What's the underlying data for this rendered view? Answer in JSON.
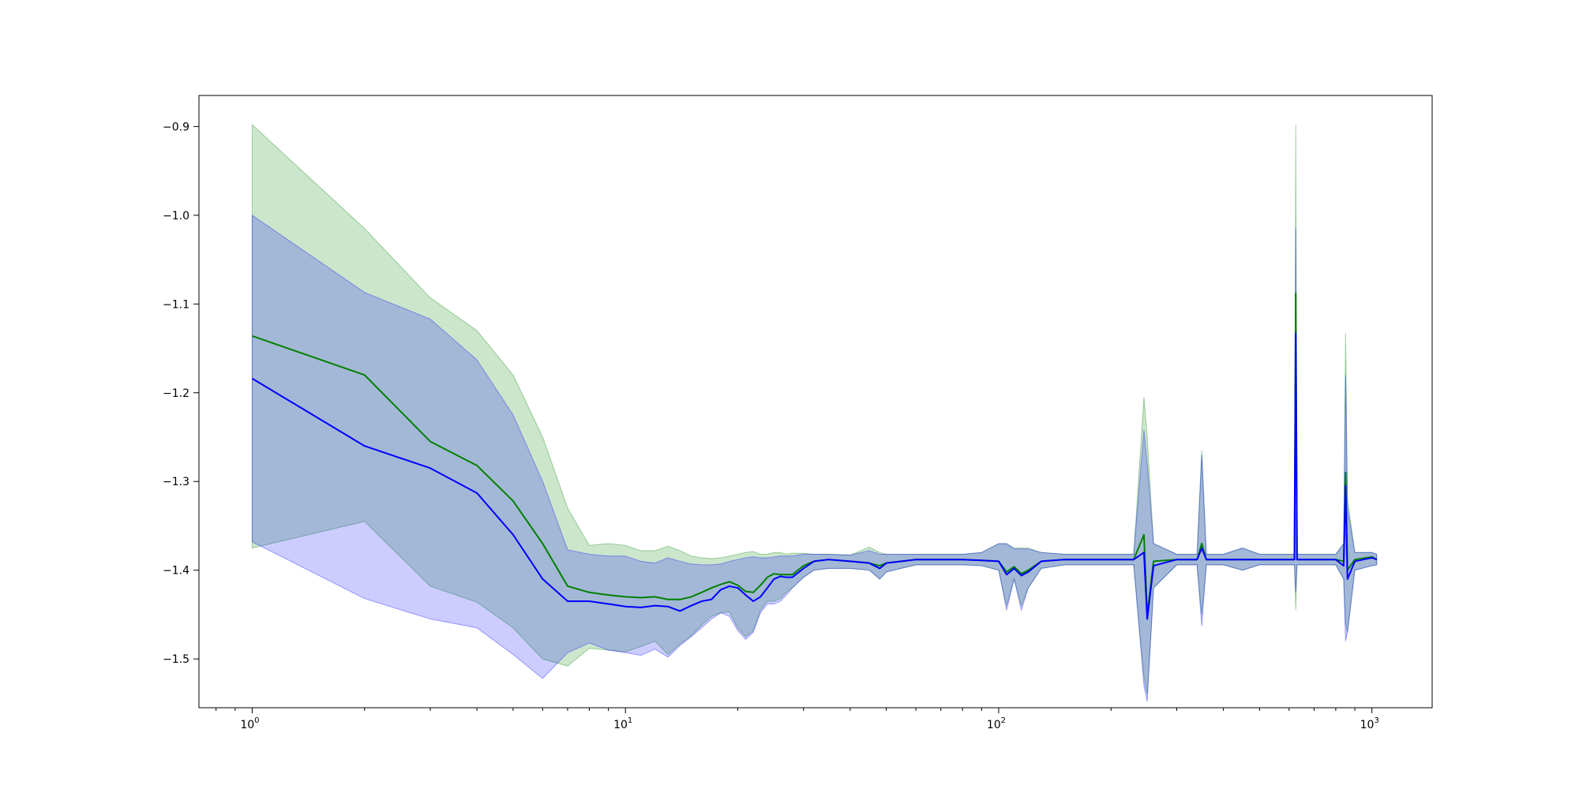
{
  "chart_data": {
    "type": "line",
    "xscale": "log",
    "xlim": [
      0.72,
      1450
    ],
    "ylim": [
      -1.555,
      -0.865
    ],
    "x_ticks": [
      {
        "value": 1,
        "base": "10",
        "exp": "0"
      },
      {
        "value": 10,
        "base": "10",
        "exp": "1"
      },
      {
        "value": 100,
        "base": "10",
        "exp": "2"
      },
      {
        "value": 1000,
        "base": "10",
        "exp": "3"
      }
    ],
    "y_ticks": [
      {
        "value": -0.9,
        "label": "−0.9"
      },
      {
        "value": -1.0,
        "label": "−1.0"
      },
      {
        "value": -1.1,
        "label": "−1.1"
      },
      {
        "value": -1.2,
        "label": "−1.2"
      },
      {
        "value": -1.3,
        "label": "−1.3"
      },
      {
        "value": -1.4,
        "label": "−1.4"
      },
      {
        "value": -1.5,
        "label": "−1.5"
      }
    ],
    "grid": false,
    "colors": {
      "green_line": "#008000",
      "green_band": "#008000",
      "blue_line": "#0000ff",
      "blue_band": "#0000ff",
      "band_opacity": 0.2
    },
    "series": [
      {
        "color": "green",
        "x": [
          1,
          2,
          3,
          4,
          5,
          6,
          7,
          8,
          9,
          10,
          11,
          12,
          13,
          14,
          15,
          16,
          17,
          18,
          19,
          20,
          21,
          22,
          23,
          24,
          25,
          26,
          27,
          28,
          30,
          32,
          35,
          40,
          45,
          48,
          50,
          60,
          70,
          80,
          90,
          100,
          105,
          110,
          115,
          120,
          130,
          150,
          180,
          200,
          230,
          245,
          250,
          260,
          300,
          340,
          350,
          360,
          400,
          450,
          500,
          550,
          600,
          620,
          625,
          630,
          700,
          800,
          840,
          850,
          860,
          900,
          1000,
          1030
        ],
        "mean": [
          -1.136,
          -1.18,
          -1.255,
          -1.282,
          -1.322,
          -1.37,
          -1.418,
          -1.425,
          -1.428,
          -1.43,
          -1.431,
          -1.43,
          -1.433,
          -1.433,
          -1.43,
          -1.425,
          -1.42,
          -1.416,
          -1.413,
          -1.417,
          -1.424,
          -1.425,
          -1.417,
          -1.408,
          -1.404,
          -1.405,
          -1.405,
          -1.405,
          -1.395,
          -1.39,
          -1.388,
          -1.39,
          -1.392,
          -1.395,
          -1.392,
          -1.388,
          -1.388,
          -1.388,
          -1.389,
          -1.39,
          -1.402,
          -1.396,
          -1.404,
          -1.4,
          -1.39,
          -1.388,
          -1.388,
          -1.388,
          -1.388,
          -1.36,
          -1.45,
          -1.39,
          -1.388,
          -1.388,
          -1.37,
          -1.388,
          -1.388,
          -1.388,
          -1.388,
          -1.388,
          -1.388,
          -1.388,
          -1.088,
          -1.388,
          -1.388,
          -1.388,
          -1.39,
          -1.29,
          -1.4,
          -1.388,
          -1.385,
          -1.388
        ],
        "lower": [
          -1.375,
          -1.345,
          -1.418,
          -1.436,
          -1.465,
          -1.5,
          -1.508,
          -1.488,
          -1.49,
          -1.492,
          -1.486,
          -1.48,
          -1.495,
          -1.483,
          -1.474,
          -1.462,
          -1.452,
          -1.448,
          -1.447,
          -1.465,
          -1.475,
          -1.468,
          -1.445,
          -1.435,
          -1.435,
          -1.432,
          -1.425,
          -1.42,
          -1.408,
          -1.4,
          -1.398,
          -1.398,
          -1.4,
          -1.41,
          -1.402,
          -1.394,
          -1.394,
          -1.394,
          -1.395,
          -1.4,
          -1.44,
          -1.41,
          -1.44,
          -1.42,
          -1.398,
          -1.394,
          -1.394,
          -1.394,
          -1.394,
          -1.52,
          -1.54,
          -1.42,
          -1.394,
          -1.394,
          -1.45,
          -1.394,
          -1.394,
          -1.4,
          -1.394,
          -1.394,
          -1.394,
          -1.394,
          -1.445,
          -1.394,
          -1.394,
          -1.394,
          -1.41,
          -1.46,
          -1.47,
          -1.4,
          -1.395,
          -1.394
        ],
        "upper": [
          -0.898,
          -1.015,
          -1.093,
          -1.13,
          -1.18,
          -1.25,
          -1.33,
          -1.372,
          -1.37,
          -1.372,
          -1.378,
          -1.378,
          -1.373,
          -1.378,
          -1.384,
          -1.386,
          -1.387,
          -1.386,
          -1.384,
          -1.382,
          -1.38,
          -1.379,
          -1.382,
          -1.382,
          -1.38,
          -1.38,
          -1.382,
          -1.381,
          -1.381,
          -1.382,
          -1.382,
          -1.383,
          -1.374,
          -1.38,
          -1.382,
          -1.382,
          -1.382,
          -1.382,
          -1.38,
          -1.37,
          -1.37,
          -1.375,
          -1.375,
          -1.375,
          -1.38,
          -1.382,
          -1.382,
          -1.382,
          -1.382,
          -1.205,
          -1.25,
          -1.37,
          -1.382,
          -1.382,
          -1.265,
          -1.382,
          -1.382,
          -1.375,
          -1.382,
          -1.382,
          -1.382,
          -1.382,
          -0.898,
          -1.382,
          -1.382,
          -1.382,
          -1.37,
          -1.133,
          -1.32,
          -1.38,
          -1.38,
          -1.382
        ]
      },
      {
        "color": "blue",
        "x": [
          1,
          2,
          3,
          4,
          5,
          6,
          7,
          8,
          9,
          10,
          11,
          12,
          13,
          14,
          15,
          16,
          17,
          18,
          19,
          20,
          21,
          22,
          23,
          24,
          25,
          26,
          27,
          28,
          30,
          32,
          35,
          40,
          45,
          48,
          50,
          60,
          70,
          80,
          90,
          100,
          105,
          110,
          115,
          120,
          130,
          150,
          180,
          200,
          230,
          245,
          250,
          260,
          300,
          340,
          350,
          360,
          400,
          450,
          500,
          550,
          600,
          620,
          625,
          630,
          700,
          800,
          840,
          850,
          860,
          900,
          1000,
          1030
        ],
        "mean": [
          -1.184,
          -1.26,
          -1.285,
          -1.313,
          -1.36,
          -1.41,
          -1.435,
          -1.435,
          -1.438,
          -1.441,
          -1.442,
          -1.44,
          -1.441,
          -1.446,
          -1.44,
          -1.435,
          -1.433,
          -1.422,
          -1.418,
          -1.42,
          -1.428,
          -1.435,
          -1.43,
          -1.42,
          -1.41,
          -1.407,
          -1.408,
          -1.408,
          -1.398,
          -1.39,
          -1.388,
          -1.39,
          -1.392,
          -1.398,
          -1.392,
          -1.388,
          -1.388,
          -1.388,
          -1.389,
          -1.39,
          -1.405,
          -1.398,
          -1.406,
          -1.402,
          -1.39,
          -1.388,
          -1.388,
          -1.388,
          -1.388,
          -1.38,
          -1.455,
          -1.395,
          -1.388,
          -1.388,
          -1.375,
          -1.388,
          -1.388,
          -1.388,
          -1.388,
          -1.388,
          -1.388,
          -1.388,
          -1.133,
          -1.388,
          -1.388,
          -1.388,
          -1.395,
          -1.305,
          -1.41,
          -1.39,
          -1.386,
          -1.388
        ],
        "lower": [
          -1.368,
          -1.432,
          -1.455,
          -1.465,
          -1.495,
          -1.522,
          -1.493,
          -1.482,
          -1.49,
          -1.493,
          -1.496,
          -1.489,
          -1.498,
          -1.485,
          -1.475,
          -1.465,
          -1.455,
          -1.448,
          -1.452,
          -1.468,
          -1.478,
          -1.47,
          -1.448,
          -1.438,
          -1.438,
          -1.435,
          -1.428,
          -1.42,
          -1.408,
          -1.4,
          -1.398,
          -1.398,
          -1.4,
          -1.41,
          -1.402,
          -1.394,
          -1.394,
          -1.394,
          -1.395,
          -1.4,
          -1.445,
          -1.41,
          -1.445,
          -1.42,
          -1.398,
          -1.394,
          -1.394,
          -1.394,
          -1.394,
          -1.53,
          -1.548,
          -1.42,
          -1.394,
          -1.394,
          -1.463,
          -1.394,
          -1.394,
          -1.4,
          -1.394,
          -1.394,
          -1.394,
          -1.394,
          -1.425,
          -1.394,
          -1.394,
          -1.394,
          -1.41,
          -1.48,
          -1.47,
          -1.4,
          -1.395,
          -1.394
        ],
        "upper": [
          -1.0,
          -1.087,
          -1.117,
          -1.163,
          -1.225,
          -1.3,
          -1.377,
          -1.382,
          -1.384,
          -1.384,
          -1.39,
          -1.392,
          -1.386,
          -1.39,
          -1.393,
          -1.394,
          -1.394,
          -1.393,
          -1.39,
          -1.388,
          -1.386,
          -1.385,
          -1.386,
          -1.386,
          -1.385,
          -1.384,
          -1.384,
          -1.384,
          -1.382,
          -1.382,
          -1.382,
          -1.383,
          -1.378,
          -1.382,
          -1.382,
          -1.382,
          -1.382,
          -1.382,
          -1.38,
          -1.37,
          -1.37,
          -1.376,
          -1.376,
          -1.376,
          -1.38,
          -1.382,
          -1.382,
          -1.382,
          -1.382,
          -1.242,
          -1.28,
          -1.37,
          -1.382,
          -1.382,
          -1.27,
          -1.382,
          -1.382,
          -1.375,
          -1.382,
          -1.382,
          -1.382,
          -1.382,
          -1.015,
          -1.382,
          -1.382,
          -1.382,
          -1.37,
          -1.18,
          -1.33,
          -1.38,
          -1.38,
          -1.382
        ]
      }
    ]
  }
}
